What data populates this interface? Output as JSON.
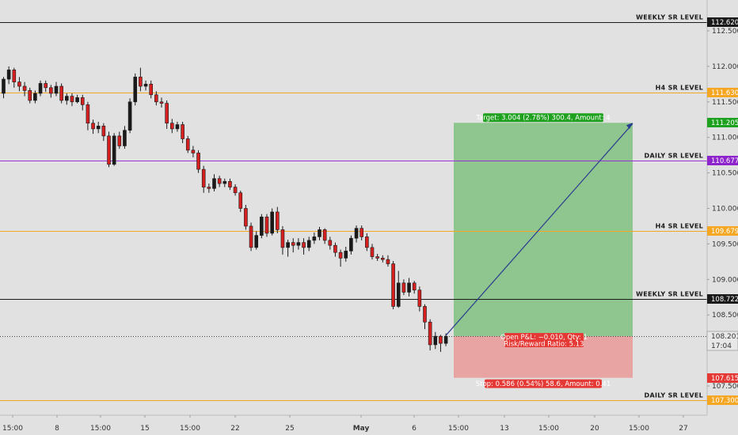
{
  "chart_data": {
    "type": "candlestick",
    "y_range": [
      107.2,
      112.7
    ],
    "y_ticks": [
      "112.500",
      "112.000",
      "111.500",
      "111.000",
      "110.500",
      "110.000",
      "109.500",
      "109.000",
      "108.500",
      "107.500"
    ],
    "x_ticks": [
      "15:00",
      "8",
      "15:00",
      "15",
      "15:00",
      "22",
      "25",
      "May",
      "6",
      "15:00",
      "13",
      "15:00",
      "20",
      "15:00",
      "27"
    ],
    "levels": [
      {
        "label": "WEEKLY SR LEVEL",
        "price": 112.62,
        "price_label": "112.620",
        "color": "#1a1a1a",
        "badge_color": "#1a1a1a"
      },
      {
        "label": "H4 SR LEVEL",
        "price": 111.63,
        "price_label": "111.630",
        "color": "#f5a623",
        "badge_color": "#f5a623"
      },
      {
        "label": "DAILY SR LEVEL",
        "price": 110.677,
        "price_label": "110.677",
        "color": "#9b30d9",
        "badge_color": "#8e24cc"
      },
      {
        "label": "H4 SR LEVEL",
        "price": 109.679,
        "price_label": "109.679",
        "color": "#f5a623",
        "badge_color": "#f5a623"
      },
      {
        "label": "WEEKLY SR LEVEL",
        "price": 108.722,
        "price_label": "108.722",
        "color": "#1a1a1a",
        "badge_color": "#1a1a1a"
      },
      {
        "label": "DAILY SR LEVEL",
        "price": 107.3,
        "price_label": "107.300",
        "color": "#f5a623",
        "badge_color": "#f5a623"
      }
    ],
    "last_price": {
      "price": 108.201,
      "price_label": "108.201",
      "countdown": "17:04"
    },
    "position": {
      "entry": 108.201,
      "target": 111.205,
      "target_label": "111.205",
      "stop": 107.615,
      "stop_label": "107.615",
      "target_text": "Target: 3.004 (2.78%) 300.4, Amount: 4",
      "stop_text": "Stop: 0.586 (0.54%) 58.6, Amount: 0.41",
      "pnl_text": "Open P&L: −0.010, Qty: 1",
      "rr_text": "Risk/Reward Ratio: 5.13"
    },
    "candles": [
      [
        111.62,
        111.82,
        111.85,
        111.55
      ],
      [
        111.82,
        111.95,
        112.0,
        111.75
      ],
      [
        111.95,
        111.78,
        111.98,
        111.7
      ],
      [
        111.78,
        111.72,
        111.85,
        111.65
      ],
      [
        111.72,
        111.66,
        111.78,
        111.58
      ],
      [
        111.66,
        111.52,
        111.7,
        111.48
      ],
      [
        111.52,
        111.62,
        111.66,
        111.48
      ],
      [
        111.62,
        111.76,
        111.8,
        111.58
      ],
      [
        111.76,
        111.7,
        111.8,
        111.64
      ],
      [
        111.7,
        111.62,
        111.74,
        111.56
      ],
      [
        111.62,
        111.72,
        111.78,
        111.58
      ],
      [
        111.72,
        111.52,
        111.76,
        111.48
      ],
      [
        111.52,
        111.58,
        111.62,
        111.46
      ],
      [
        111.58,
        111.5,
        111.62,
        111.44
      ],
      [
        111.5,
        111.56,
        111.6,
        111.48
      ],
      [
        111.56,
        111.46,
        111.6,
        111.38
      ],
      [
        111.46,
        111.2,
        111.5,
        111.1
      ],
      [
        111.2,
        111.12,
        111.25,
        111.05
      ],
      [
        111.12,
        111.16,
        111.22,
        111.06
      ],
      [
        111.16,
        111.02,
        111.2,
        110.95
      ],
      [
        111.02,
        110.62,
        111.08,
        110.58
      ],
      [
        110.62,
        111.02,
        111.06,
        110.6
      ],
      [
        111.02,
        110.88,
        111.08,
        110.84
      ],
      [
        110.88,
        111.1,
        111.16,
        110.84
      ],
      [
        111.1,
        111.5,
        111.55,
        111.06
      ],
      [
        111.5,
        111.85,
        111.9,
        111.45
      ],
      [
        111.85,
        111.72,
        111.98,
        111.65
      ],
      [
        111.72,
        111.75,
        111.8,
        111.66
      ],
      [
        111.75,
        111.6,
        111.8,
        111.55
      ],
      [
        111.6,
        111.5,
        111.65,
        111.45
      ],
      [
        111.5,
        111.48,
        111.56,
        111.42
      ],
      [
        111.48,
        111.2,
        111.52,
        111.12
      ],
      [
        111.2,
        111.12,
        111.26,
        111.06
      ],
      [
        111.12,
        111.18,
        111.22,
        111.08
      ],
      [
        111.18,
        110.98,
        111.22,
        110.92
      ],
      [
        110.98,
        110.82,
        111.02,
        110.78
      ],
      [
        110.82,
        110.78,
        110.88,
        110.72
      ],
      [
        110.78,
        110.55,
        110.82,
        110.5
      ],
      [
        110.55,
        110.3,
        110.6,
        110.22
      ],
      [
        110.3,
        110.28,
        110.35,
        110.22
      ],
      [
        110.28,
        110.42,
        110.48,
        110.24
      ],
      [
        110.42,
        110.35,
        110.46,
        110.3
      ],
      [
        110.35,
        110.38,
        110.42,
        110.3
      ],
      [
        110.38,
        110.3,
        110.42,
        110.26
      ],
      [
        110.3,
        110.22,
        110.34,
        110.18
      ],
      [
        110.22,
        110.0,
        110.25,
        109.95
      ],
      [
        110.0,
        109.75,
        110.05,
        109.7
      ],
      [
        109.75,
        109.45,
        109.8,
        109.4
      ],
      [
        109.45,
        109.62,
        109.68,
        109.42
      ],
      [
        109.62,
        109.88,
        109.92,
        109.58
      ],
      [
        109.88,
        109.65,
        109.92,
        109.6
      ],
      [
        109.65,
        109.95,
        110.0,
        109.62
      ],
      [
        109.95,
        109.7,
        110.02,
        109.65
      ],
      [
        109.7,
        109.45,
        109.75,
        109.35
      ],
      [
        109.45,
        109.52,
        109.56,
        109.32
      ],
      [
        109.52,
        109.48,
        109.58,
        109.38
      ],
      [
        109.48,
        109.52,
        109.58,
        109.42
      ],
      [
        109.52,
        109.45,
        109.58,
        109.35
      ],
      [
        109.45,
        109.55,
        109.6,
        109.4
      ],
      [
        109.55,
        109.6,
        109.66,
        109.5
      ],
      [
        109.6,
        109.7,
        109.74,
        109.55
      ],
      [
        109.7,
        109.55,
        109.72,
        109.5
      ],
      [
        109.55,
        109.48,
        109.6,
        109.42
      ],
      [
        109.48,
        109.38,
        109.52,
        109.32
      ],
      [
        109.38,
        109.3,
        109.42,
        109.18
      ],
      [
        109.3,
        109.4,
        109.46,
        109.25
      ],
      [
        109.4,
        109.58,
        109.62,
        109.35
      ],
      [
        109.58,
        109.72,
        109.76,
        109.52
      ],
      [
        109.72,
        109.6,
        109.76,
        109.55
      ],
      [
        109.6,
        109.45,
        109.65,
        109.4
      ],
      [
        109.45,
        109.32,
        109.5,
        109.28
      ],
      [
        109.32,
        109.3,
        109.36,
        109.26
      ],
      [
        109.3,
        109.28,
        109.34,
        109.24
      ],
      [
        109.28,
        109.22,
        109.34,
        109.18
      ],
      [
        109.22,
        108.62,
        109.26,
        108.58
      ],
      [
        108.62,
        108.95,
        109.12,
        108.6
      ],
      [
        108.95,
        108.82,
        109.0,
        108.78
      ],
      [
        108.82,
        108.95,
        109.02,
        108.76
      ],
      [
        108.95,
        108.85,
        108.98,
        108.8
      ],
      [
        108.85,
        108.62,
        108.9,
        108.55
      ],
      [
        108.62,
        108.4,
        108.65,
        108.3
      ],
      [
        108.4,
        108.08,
        108.44,
        108.0
      ],
      [
        108.08,
        108.2,
        108.26,
        108.02
      ],
      [
        108.2,
        108.1,
        108.22,
        107.98
      ],
      [
        108.1,
        108.2,
        108.24,
        108.06
      ]
    ]
  }
}
